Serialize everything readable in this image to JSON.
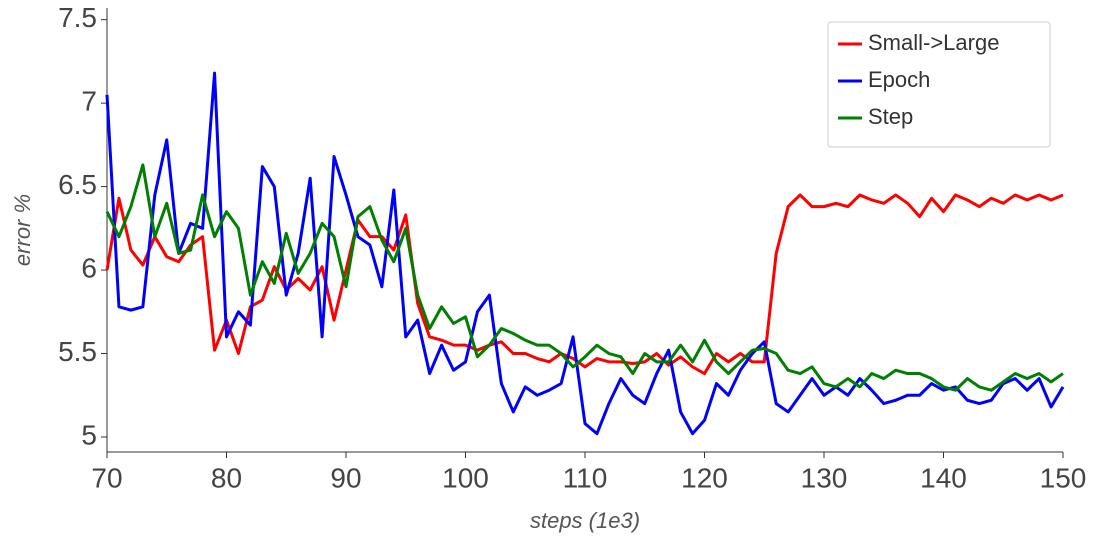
{
  "chart_data": {
    "type": "line",
    "x_label": "steps (1e3)",
    "y_label": "error %",
    "x": [
      70,
      71,
      72,
      73,
      74,
      75,
      76,
      77,
      78,
      79,
      80,
      81,
      82,
      83,
      84,
      85,
      86,
      87,
      88,
      89,
      90,
      91,
      92,
      93,
      94,
      95,
      96,
      97,
      98,
      99,
      100,
      101,
      102,
      103,
      104,
      105,
      106,
      107,
      108,
      109,
      110,
      111,
      112,
      113,
      114,
      115,
      116,
      117,
      118,
      119,
      120,
      121,
      122,
      123,
      124,
      125,
      126,
      127,
      128,
      129,
      130,
      131,
      132,
      133,
      134,
      135,
      136,
      137,
      138,
      139,
      140,
      141,
      142,
      143,
      144,
      145,
      146,
      147,
      148,
      149,
      150
    ],
    "series": [
      {
        "name": "Small->Large",
        "color": "#ff0000",
        "values": [
          6.0,
          6.43,
          6.12,
          6.03,
          6.2,
          6.08,
          6.05,
          6.15,
          6.2,
          5.52,
          5.7,
          5.5,
          5.78,
          5.82,
          6.02,
          5.88,
          5.95,
          5.88,
          6.02,
          5.7,
          6.0,
          6.3,
          6.2,
          6.2,
          6.12,
          6.33,
          5.8,
          5.6,
          5.58,
          5.55,
          5.55,
          5.52,
          5.55,
          5.57,
          5.5,
          5.5,
          5.47,
          5.45,
          5.5,
          5.47,
          5.42,
          5.47,
          5.45,
          5.45,
          5.44,
          5.45,
          5.5,
          5.43,
          5.48,
          5.42,
          5.38,
          5.5,
          5.45,
          5.5,
          5.45,
          5.45,
          6.1,
          6.38,
          6.45,
          6.38,
          6.38,
          6.4,
          6.38,
          6.45,
          6.42,
          6.4,
          6.45,
          6.4,
          6.32,
          6.43,
          6.35,
          6.45,
          6.42,
          6.38,
          6.43,
          6.4,
          6.45,
          6.42,
          6.45,
          6.42,
          6.45
        ]
      },
      {
        "name": "Epoch",
        "color": "#0000ff",
        "values": [
          7.05,
          5.78,
          5.76,
          5.78,
          6.45,
          6.78,
          6.1,
          6.28,
          6.25,
          7.18,
          5.6,
          5.75,
          5.67,
          6.62,
          6.5,
          5.85,
          6.1,
          6.55,
          5.6,
          6.68,
          6.45,
          6.2,
          6.15,
          5.9,
          6.48,
          5.6,
          5.7,
          5.38,
          5.55,
          5.4,
          5.45,
          5.75,
          5.85,
          5.32,
          5.15,
          5.3,
          5.25,
          5.28,
          5.32,
          5.6,
          5.08,
          5.02,
          5.2,
          5.35,
          5.25,
          5.2,
          5.38,
          5.52,
          5.15,
          5.02,
          5.1,
          5.32,
          5.25,
          5.4,
          5.5,
          5.57,
          5.2,
          5.15,
          5.25,
          5.35,
          5.25,
          5.3,
          5.25,
          5.35,
          5.28,
          5.2,
          5.22,
          5.25,
          5.25,
          5.32,
          5.28,
          5.3,
          5.22,
          5.2,
          5.22,
          5.32,
          5.35,
          5.28,
          5.35,
          5.18,
          5.3
        ]
      },
      {
        "name": "Step",
        "color": "#008000",
        "values": [
          6.35,
          6.2,
          6.38,
          6.63,
          6.2,
          6.4,
          6.1,
          6.12,
          6.45,
          6.2,
          6.35,
          6.25,
          5.85,
          6.05,
          5.92,
          6.22,
          5.98,
          6.1,
          6.28,
          6.2,
          5.9,
          6.32,
          6.38,
          6.18,
          6.05,
          6.25,
          5.85,
          5.65,
          5.78,
          5.68,
          5.72,
          5.48,
          5.55,
          5.65,
          5.62,
          5.58,
          5.55,
          5.55,
          5.5,
          5.42,
          5.48,
          5.55,
          5.5,
          5.48,
          5.38,
          5.5,
          5.45,
          5.45,
          5.55,
          5.45,
          5.58,
          5.45,
          5.38,
          5.45,
          5.52,
          5.53,
          5.5,
          5.4,
          5.38,
          5.42,
          5.32,
          5.3,
          5.35,
          5.3,
          5.38,
          5.35,
          5.4,
          5.38,
          5.38,
          5.35,
          5.3,
          5.28,
          5.35,
          5.3,
          5.28,
          5.33,
          5.38,
          5.35,
          5.38,
          5.33,
          5.38
        ]
      }
    ],
    "xlim": [
      70,
      150
    ],
    "ylim": [
      4.91,
      7.57
    ],
    "xticks": [
      70,
      80,
      90,
      100,
      110,
      120,
      130,
      140,
      150
    ],
    "yticks": [
      5,
      5.5,
      6,
      6.5,
      7,
      7.5
    ],
    "grid": false,
    "legend": "upper right"
  }
}
